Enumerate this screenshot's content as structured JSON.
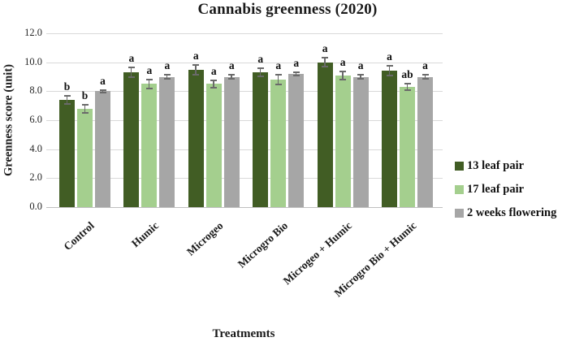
{
  "chart_data": {
    "type": "bar",
    "title": "Cannabis greenness (2020)",
    "xlabel": "Treatmemts",
    "ylabel": "Greenness score (unit)",
    "ylim": [
      0,
      12
    ],
    "ytick_labels": [
      "0.0",
      "2.0",
      "4.0",
      "6.0",
      "8.0",
      "10.0",
      "12.0"
    ],
    "ytick_values": [
      0,
      2,
      4,
      6,
      8,
      10,
      12
    ],
    "grid": true,
    "legend_position": "right",
    "categories": [
      "Control",
      "Humic",
      "Microgeo",
      "Microgro Bio",
      "Microgeo + Humic",
      "Microgro Bio + Humic"
    ],
    "series": [
      {
        "name": "13 leaf pair",
        "color": "#415d24",
        "values": [
          7.4,
          9.3,
          9.5,
          9.3,
          10.0,
          9.4
        ],
        "errors": [
          0.35,
          0.4,
          0.4,
          0.35,
          0.35,
          0.4
        ],
        "letters": [
          "b",
          "a",
          "a",
          "a",
          "a",
          "a"
        ]
      },
      {
        "name": "17 leaf pair",
        "color": "#a4cf8e",
        "values": [
          6.8,
          8.5,
          8.5,
          8.8,
          9.1,
          8.3
        ],
        "errors": [
          0.35,
          0.35,
          0.3,
          0.4,
          0.35,
          0.3
        ],
        "letters": [
          "b",
          "a",
          "a",
          "a",
          "a",
          "ab"
        ]
      },
      {
        "name": "2 weeks flowering",
        "color": "#a6a6a6",
        "values": [
          8.0,
          9.0,
          9.0,
          9.2,
          9.0,
          9.0
        ],
        "errors": [
          0.15,
          0.2,
          0.2,
          0.15,
          0.2,
          0.2
        ],
        "letters": [
          "a",
          "a",
          "a",
          "a",
          "a",
          "a"
        ]
      }
    ],
    "colors": {
      "gridline": "#d9d9d9",
      "axis_line": "#bfbfbf",
      "error_bar": "#6a6a6a",
      "text": "#1a1a1a"
    }
  }
}
